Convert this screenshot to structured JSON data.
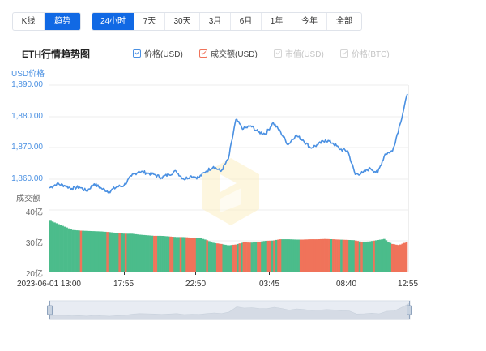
{
  "toolbar": {
    "view_toggle": [
      {
        "label": "K线",
        "active": false
      },
      {
        "label": "趋势",
        "active": true
      }
    ],
    "ranges": [
      {
        "label": "24小时",
        "active": true
      },
      {
        "label": "7天",
        "active": false
      },
      {
        "label": "30天",
        "active": false
      },
      {
        "label": "3月",
        "active": false
      },
      {
        "label": "6月",
        "active": false
      },
      {
        "label": "1年",
        "active": false
      },
      {
        "label": "今年",
        "active": false
      },
      {
        "label": "全部",
        "active": false
      }
    ]
  },
  "header": {
    "title": "ETH行情趋势图"
  },
  "legend": [
    {
      "label": "价格(USD)",
      "checked": true,
      "color": "#4a90e2"
    },
    {
      "label": "成交额(USD)",
      "checked": true,
      "color": "#f0735a"
    },
    {
      "label": "市值(USD)",
      "checked": false,
      "color": "#cccccc"
    },
    {
      "label": "价格(BTC)",
      "checked": false,
      "color": "#cccccc"
    }
  ],
  "axes": {
    "price_label": "USD价格",
    "volume_label": "成交额",
    "price_ticks": [
      "1,890.00",
      "1,880.00",
      "1,870.00",
      "1,860.00"
    ],
    "volume_ticks": [
      "40亿",
      "30亿",
      "20亿"
    ],
    "x_ticks": [
      "2023-06-01 13:00",
      "17:55",
      "22:50",
      "03:45",
      "08:40",
      "12:55"
    ]
  },
  "colors": {
    "accent": "#1169e4",
    "price_line": "#4a90e2",
    "volume_up": "#4bbc8b",
    "volume_down": "#f0735a",
    "watermark": "#fdf3d2",
    "slider_fill": "#dde3ec"
  },
  "chart_data": [
    {
      "type": "line",
      "title": "ETH行情趋势图",
      "ylabel": "USD价格",
      "xlabel": "",
      "ylim": [
        1857,
        1890
      ],
      "grid": true,
      "x": [
        "13:00",
        "13:30",
        "14:00",
        "14:30",
        "15:00",
        "15:30",
        "16:00",
        "16:30",
        "17:00",
        "17:30",
        "17:55",
        "18:30",
        "19:00",
        "19:30",
        "20:00",
        "20:30",
        "21:00",
        "21:30",
        "22:00",
        "22:30",
        "22:50",
        "23:30",
        "00:00",
        "00:30",
        "01:00",
        "01:30",
        "02:00",
        "02:30",
        "03:00",
        "03:30",
        "03:45",
        "04:30",
        "05:00",
        "05:30",
        "06:00",
        "06:30",
        "07:00",
        "07:30",
        "08:00",
        "08:30",
        "08:40",
        "09:30",
        "10:00",
        "10:30",
        "11:00",
        "11:30",
        "12:00",
        "12:30",
        "12:55"
      ],
      "series": [
        {
          "name": "价格(USD)",
          "values": [
            1857.2,
            1858.5,
            1858.0,
            1857.0,
            1857.5,
            1856.2,
            1858.5,
            1857.0,
            1856.0,
            1857.5,
            1858.0,
            1861.0,
            1862.5,
            1862.0,
            1861.5,
            1860.5,
            1861.5,
            1862.5,
            1860.0,
            1861.0,
            1860.5,
            1862.5,
            1864.0,
            1862.5,
            1866.5,
            1879.0,
            1876.0,
            1877.0,
            1875.0,
            1874.5,
            1878.0,
            1875.0,
            1871.0,
            1874.0,
            1872.5,
            1870.0,
            1871.0,
            1872.5,
            1871.5,
            1869.5,
            1869.0,
            1861.5,
            1862.0,
            1863.5,
            1862.0,
            1868.0,
            1869.0,
            1877.5,
            1887.2
          ]
        }
      ],
      "legend_position": "top"
    },
    {
      "type": "bar",
      "title": "成交额(USD)",
      "ylabel": "成交额",
      "ylim": [
        20,
        40
      ],
      "unit": "亿",
      "x_ticks": [
        "2023-06-01 13:00",
        "17:55",
        "22:50",
        "03:45",
        "08:40",
        "12:55"
      ],
      "series": [
        {
          "name": "成交额(USD)",
          "values": [
            36.5,
            35.5,
            34.5,
            33.5,
            33.3,
            33.2,
            33.1,
            33.0,
            32.8,
            32.5,
            32.3,
            32.3,
            32.0,
            31.8,
            31.6,
            31.6,
            31.4,
            31.2,
            31.2,
            31.0,
            31.0,
            30.3,
            29.3,
            29.0,
            28.5,
            28.8,
            29.5,
            29.4,
            29.6,
            30.0,
            30.1,
            30.5,
            30.5,
            30.4,
            30.4,
            30.5,
            30.5,
            30.6,
            30.5,
            30.4,
            30.3,
            30.2,
            29.6,
            29.8,
            30.2,
            30.6,
            29.0,
            28.6,
            29.6
          ]
        }
      ],
      "note": "bars colored green (up) / red (down) per interval"
    }
  ]
}
